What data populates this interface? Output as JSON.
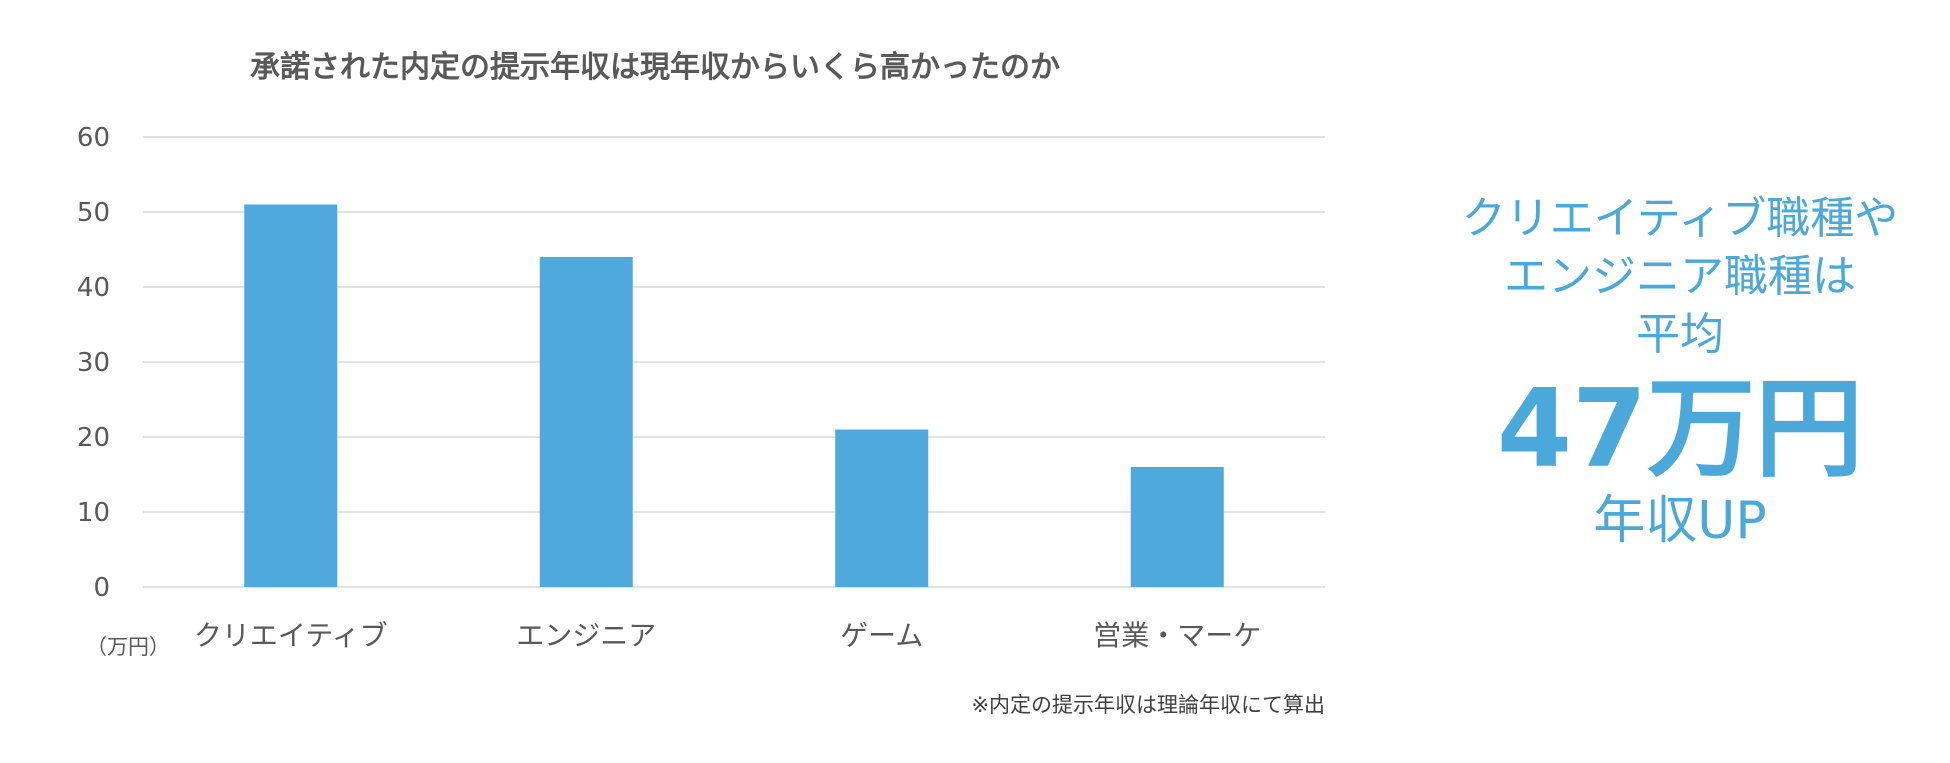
{
  "chart_data": {
    "type": "bar",
    "title": "承諾された内定の提示年収は現年収からいくら高かったのか",
    "categories": [
      "クリエイティブ",
      "エンジニア",
      "ゲーム",
      "営業・マーケ"
    ],
    "series": [
      {
        "values": [
          51,
          44,
          21,
          16
        ]
      }
    ],
    "ylim": [
      0,
      60
    ],
    "yticks": [
      "0",
      "10",
      "20",
      "30",
      "40",
      "50",
      "60"
    ],
    "unit": "（万円）",
    "grid": true,
    "bar_color": "#4FA9DD",
    "footnote": "※内定の提示年収は理論年収にて算出"
  },
  "callout": {
    "line1": "クリエイティブ職種や",
    "line2": "エンジニア職種は",
    "line3": "平均",
    "big": "47万円",
    "bottom": "年収UP",
    "color": "#4BA8DB"
  }
}
